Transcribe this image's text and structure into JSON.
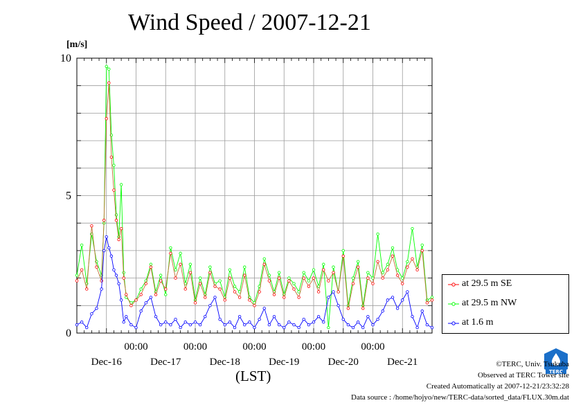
{
  "title": "Wind Speed / 2007-12-21",
  "unit": "[m/s]",
  "xlabel": "(LST)",
  "credits": {
    "copyright": "©TERC, Univ. Tsukuba",
    "observed": "Observed at TERC Tower site",
    "created": "Created Automatically at 2007-12-21/23:32:28",
    "source": "Data source : /home/hojyo/new/TERC-data/sorted_data/FLUX.30m.dat"
  },
  "logo_text": "TERC",
  "chart_data": {
    "type": "line",
    "ylim": [
      0,
      10
    ],
    "yticks": [
      "0",
      "5",
      "10"
    ],
    "xlim": [
      0,
      144
    ],
    "grid": true,
    "legend_position": "right-bottom",
    "time_ticks": [
      {
        "t": 24,
        "label": "00:00"
      },
      {
        "t": 48,
        "label": "00:00"
      },
      {
        "t": 72,
        "label": "00:00"
      },
      {
        "t": 96,
        "label": "00:00"
      },
      {
        "t": 120,
        "label": "00:00"
      }
    ],
    "day_labels": [
      {
        "t": 12,
        "label": "Dec-16"
      },
      {
        "t": 36,
        "label": "Dec-17"
      },
      {
        "t": 60,
        "label": "Dec-18"
      },
      {
        "t": 84,
        "label": "Dec-19"
      },
      {
        "t": 108,
        "label": "Dec-20"
      },
      {
        "t": 132,
        "label": "Dec-21"
      }
    ],
    "series": [
      {
        "name": "at 29.5 m SE",
        "color": "#ff0000",
        "x": [
          0,
          2,
          4,
          6,
          8,
          10,
          11,
          12,
          13,
          14,
          15,
          16,
          17,
          18,
          19,
          20,
          22,
          24,
          26,
          28,
          30,
          32,
          34,
          36,
          38,
          40,
          42,
          44,
          46,
          48,
          50,
          52,
          54,
          56,
          58,
          60,
          62,
          64,
          66,
          68,
          70,
          72,
          74,
          76,
          78,
          80,
          82,
          84,
          86,
          88,
          90,
          92,
          94,
          96,
          98,
          100,
          102,
          104,
          106,
          108,
          110,
          112,
          114,
          116,
          118,
          120,
          122,
          124,
          126,
          128,
          130,
          132,
          134,
          136,
          138,
          140,
          142,
          144
        ],
        "values": [
          1.9,
          2.3,
          1.6,
          3.9,
          2.4,
          1.9,
          4.1,
          7.8,
          9.1,
          6.4,
          5.2,
          4.1,
          3.4,
          3.8,
          2.0,
          1.4,
          1.0,
          1.2,
          1.4,
          1.8,
          2.4,
          1.4,
          1.9,
          1.6,
          2.9,
          2.0,
          2.5,
          1.6,
          2.2,
          1.1,
          1.8,
          1.3,
          2.2,
          1.7,
          1.6,
          1.2,
          2.0,
          1.5,
          1.3,
          2.1,
          1.2,
          1.0,
          1.5,
          2.5,
          1.9,
          1.4,
          2.0,
          1.3,
          1.9,
          1.6,
          1.3,
          2.0,
          1.7,
          2.0,
          1.5,
          2.3,
          1.9,
          2.2,
          1.5,
          2.8,
          0.9,
          1.8,
          2.4,
          0.9,
          2.0,
          1.8,
          2.6,
          2.0,
          2.3,
          2.8,
          2.1,
          1.8,
          2.4,
          2.7,
          2.3,
          3.0,
          1.1,
          1.2
        ]
      },
      {
        "name": "at 29.5 m NW",
        "color": "#00ff00",
        "x": [
          0,
          2,
          4,
          6,
          8,
          10,
          11,
          12,
          13,
          14,
          15,
          16,
          17,
          18,
          19,
          20,
          22,
          24,
          26,
          28,
          30,
          32,
          34,
          36,
          38,
          40,
          42,
          44,
          46,
          48,
          50,
          52,
          54,
          56,
          58,
          60,
          62,
          64,
          66,
          68,
          70,
          72,
          74,
          76,
          78,
          80,
          82,
          84,
          86,
          88,
          90,
          92,
          94,
          96,
          98,
          100,
          102,
          104,
          106,
          108,
          110,
          112,
          114,
          116,
          118,
          120,
          122,
          124,
          126,
          128,
          130,
          132,
          134,
          136,
          138,
          140,
          142,
          144
        ],
        "values": [
          2.1,
          3.2,
          1.8,
          3.6,
          2.6,
          2.1,
          4.0,
          9.7,
          9.6,
          7.2,
          6.1,
          4.3,
          3.5,
          5.4,
          2.2,
          1.3,
          1.1,
          1.2,
          1.6,
          1.9,
          2.5,
          1.5,
          2.1,
          1.4,
          3.1,
          2.3,
          2.9,
          1.8,
          2.5,
          1.2,
          2.0,
          1.4,
          2.4,
          1.8,
          1.9,
          1.3,
          2.3,
          1.7,
          1.5,
          2.4,
          1.3,
          1.1,
          1.7,
          2.7,
          2.1,
          1.5,
          2.2,
          1.4,
          2.0,
          1.8,
          1.5,
          2.2,
          1.9,
          2.3,
          1.7,
          2.5,
          0.2,
          2.4,
          1.5,
          3.0,
          1.0,
          2.0,
          2.6,
          1.0,
          2.2,
          2.0,
          3.6,
          2.2,
          2.5,
          3.1,
          2.3,
          2.0,
          2.6,
          3.8,
          2.4,
          3.2,
          1.2,
          1.3
        ]
      },
      {
        "name": "at 1.6 m",
        "color": "#0000ff",
        "x": [
          0,
          2,
          4,
          6,
          8,
          10,
          11,
          12,
          13,
          14,
          15,
          16,
          17,
          18,
          19,
          20,
          22,
          24,
          26,
          28,
          30,
          32,
          34,
          36,
          38,
          40,
          42,
          44,
          46,
          48,
          50,
          52,
          54,
          56,
          58,
          60,
          62,
          64,
          66,
          68,
          70,
          72,
          74,
          76,
          78,
          80,
          82,
          84,
          86,
          88,
          90,
          92,
          94,
          96,
          98,
          100,
          102,
          104,
          106,
          108,
          110,
          112,
          114,
          116,
          118,
          120,
          122,
          124,
          126,
          128,
          130,
          132,
          134,
          136,
          138,
          140,
          142,
          144
        ],
        "values": [
          0.3,
          0.4,
          0.2,
          0.7,
          0.9,
          1.6,
          3.0,
          3.5,
          3.1,
          2.8,
          2.3,
          2.1,
          1.8,
          1.2,
          0.4,
          0.6,
          0.3,
          0.2,
          0.8,
          1.1,
          1.3,
          0.6,
          0.3,
          0.4,
          0.3,
          0.5,
          0.2,
          0.4,
          0.3,
          0.4,
          0.3,
          0.6,
          1.0,
          1.3,
          0.5,
          0.3,
          0.4,
          0.2,
          0.6,
          0.3,
          0.4,
          0.2,
          0.5,
          0.9,
          0.3,
          0.6,
          0.3,
          0.2,
          0.4,
          0.3,
          0.2,
          0.5,
          0.3,
          0.4,
          0.6,
          0.4,
          1.3,
          1.5,
          1.0,
          0.5,
          0.3,
          0.2,
          0.4,
          0.2,
          0.6,
          0.3,
          0.5,
          0.8,
          1.2,
          1.3,
          0.9,
          1.2,
          1.5,
          0.6,
          0.2,
          0.8,
          0.3,
          0.2
        ]
      }
    ]
  }
}
